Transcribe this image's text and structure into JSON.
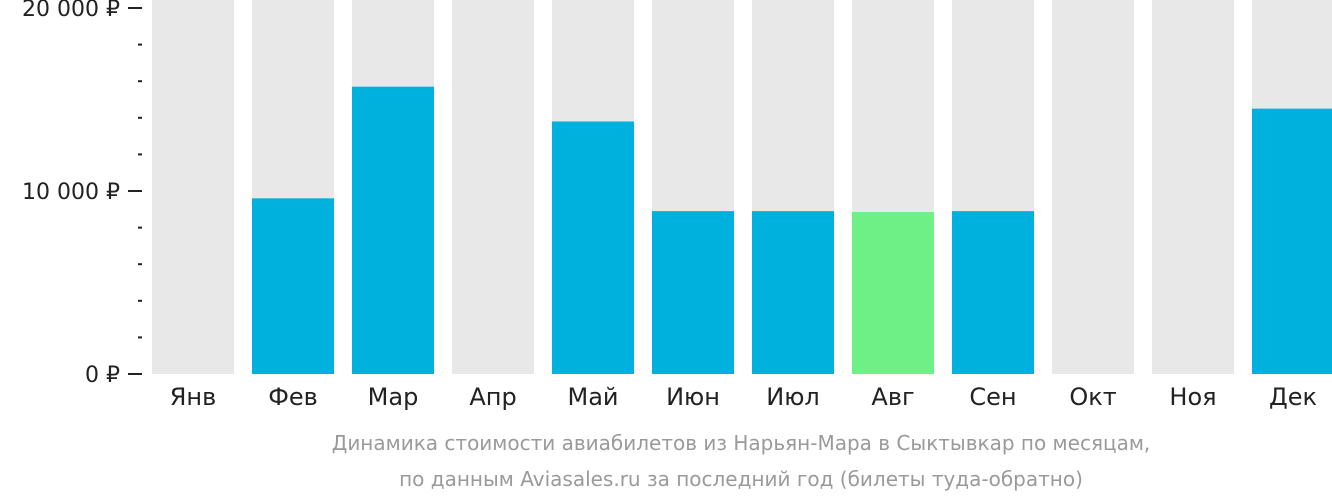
{
  "chart_data": {
    "type": "bar",
    "categories": [
      "Янв",
      "Фев",
      "Мар",
      "Апр",
      "Май",
      "Июн",
      "Июл",
      "Авг",
      "Сен",
      "Окт",
      "Ноя",
      "Дек"
    ],
    "values": [
      null,
      9600,
      15700,
      null,
      13800,
      8900,
      8900,
      8850,
      8900,
      null,
      null,
      14500
    ],
    "highlight_category": "Авг",
    "ylim": [
      0,
      20000
    ],
    "yticks": [
      {
        "value": 0,
        "label": "0 ₽"
      },
      {
        "value": 10000,
        "label": "10 000 ₽"
      },
      {
        "value": 20000,
        "label": "20 000 ₽"
      }
    ],
    "minor_tick_step": 2000,
    "colors": {
      "bar": "#00b0dd",
      "highlight": "#6ef086",
      "background_bar": "#e8e8e8",
      "axis": "#222222"
    }
  },
  "caption": {
    "line1": "Динамика стоимости авиабилетов из Нарьян-Мара в Сыктывкар по месяцам,",
    "line2": "по данным Aviasales.ru за последний год (билеты туда-обратно)"
  }
}
